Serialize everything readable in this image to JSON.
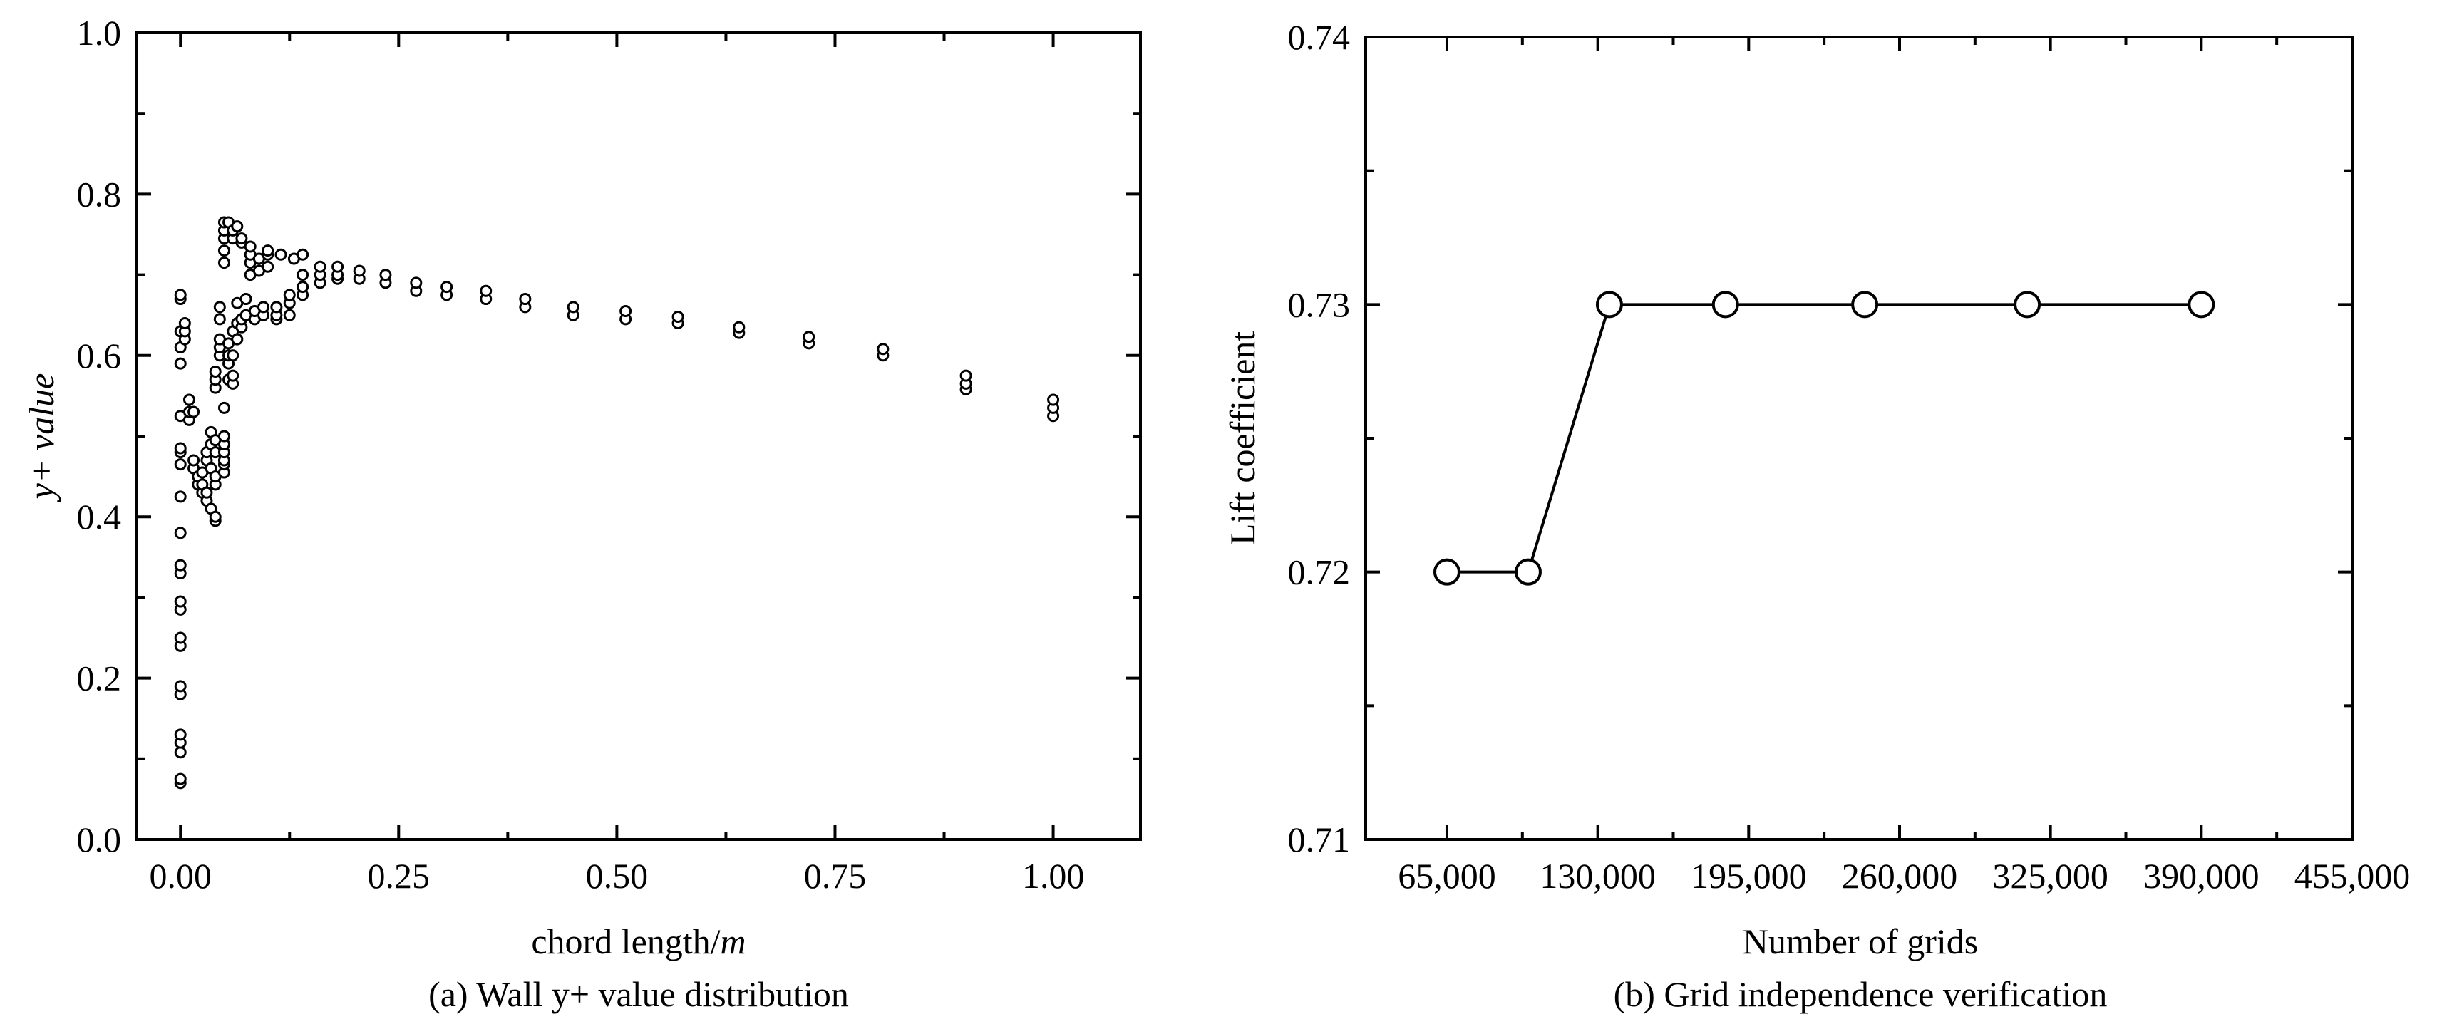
{
  "chart_data": [
    {
      "type": "scatter",
      "title": "",
      "caption": "(a) Wall y+ value distribution",
      "xlabel_prefix": "chord length/",
      "xlabel_unit": "m",
      "ylabel_prefix": "y+ ",
      "ylabel_italic": "value",
      "xlim": [
        -0.05,
        1.1
      ],
      "ylim": [
        0.0,
        1.0
      ],
      "xticks": [
        0.0,
        0.25,
        0.5,
        0.75,
        1.0
      ],
      "xtick_labels": [
        "0.00",
        "0.25",
        "0.50",
        "0.75",
        "1.00"
      ],
      "yticks": [
        0.0,
        0.2,
        0.4,
        0.6,
        0.8,
        1.0
      ],
      "ytick_labels": [
        "0.0",
        "0.2",
        "0.4",
        "0.6",
        "0.8",
        "1.0"
      ],
      "grid": false,
      "marker": "open-circle",
      "points": [
        [
          0.0,
          0.07
        ],
        [
          0.0,
          0.075
        ],
        [
          0.0,
          0.108
        ],
        [
          0.0,
          0.12
        ],
        [
          0.0,
          0.13
        ],
        [
          0.0,
          0.18
        ],
        [
          0.0,
          0.19
        ],
        [
          0.0,
          0.24
        ],
        [
          0.0,
          0.25
        ],
        [
          0.0,
          0.285
        ],
        [
          0.0,
          0.295
        ],
        [
          0.0,
          0.33
        ],
        [
          0.0,
          0.34
        ],
        [
          0.0,
          0.38
        ],
        [
          0.0,
          0.425
        ],
        [
          0.0,
          0.465
        ],
        [
          0.0,
          0.48
        ],
        [
          0.0,
          0.485
        ],
        [
          0.0,
          0.525
        ],
        [
          0.0,
          0.59
        ],
        [
          0.0,
          0.61
        ],
        [
          0.0,
          0.63
        ],
        [
          0.0,
          0.67
        ],
        [
          0.0,
          0.675
        ],
        [
          0.005,
          0.62
        ],
        [
          0.005,
          0.63
        ],
        [
          0.005,
          0.64
        ],
        [
          0.01,
          0.52
        ],
        [
          0.01,
          0.53
        ],
        [
          0.01,
          0.545
        ],
        [
          0.015,
          0.53
        ],
        [
          0.015,
          0.46
        ],
        [
          0.015,
          0.47
        ],
        [
          0.02,
          0.44
        ],
        [
          0.02,
          0.45
        ],
        [
          0.025,
          0.43
        ],
        [
          0.025,
          0.44
        ],
        [
          0.025,
          0.455
        ],
        [
          0.03,
          0.42
        ],
        [
          0.03,
          0.43
        ],
        [
          0.03,
          0.47
        ],
        [
          0.03,
          0.48
        ],
        [
          0.035,
          0.41
        ],
        [
          0.035,
          0.46
        ],
        [
          0.035,
          0.49
        ],
        [
          0.035,
          0.505
        ],
        [
          0.04,
          0.395
        ],
        [
          0.04,
          0.4
        ],
        [
          0.04,
          0.44
        ],
        [
          0.04,
          0.45
        ],
        [
          0.04,
          0.48
        ],
        [
          0.04,
          0.495
        ],
        [
          0.04,
          0.56
        ],
        [
          0.04,
          0.57
        ],
        [
          0.04,
          0.58
        ],
        [
          0.045,
          0.6
        ],
        [
          0.045,
          0.61
        ],
        [
          0.045,
          0.62
        ],
        [
          0.045,
          0.645
        ],
        [
          0.045,
          0.66
        ],
        [
          0.05,
          0.455
        ],
        [
          0.05,
          0.465
        ],
        [
          0.05,
          0.47
        ],
        [
          0.05,
          0.48
        ],
        [
          0.05,
          0.49
        ],
        [
          0.05,
          0.5
        ],
        [
          0.05,
          0.535
        ],
        [
          0.05,
          0.715
        ],
        [
          0.05,
          0.73
        ],
        [
          0.05,
          0.745
        ],
        [
          0.05,
          0.755
        ],
        [
          0.05,
          0.765
        ],
        [
          0.055,
          0.765
        ],
        [
          0.055,
          0.57
        ],
        [
          0.055,
          0.59
        ],
        [
          0.055,
          0.6
        ],
        [
          0.055,
          0.615
        ],
        [
          0.06,
          0.565
        ],
        [
          0.06,
          0.575
        ],
        [
          0.06,
          0.6
        ],
        [
          0.06,
          0.63
        ],
        [
          0.06,
          0.745
        ],
        [
          0.06,
          0.755
        ],
        [
          0.065,
          0.76
        ],
        [
          0.065,
          0.62
        ],
        [
          0.065,
          0.64
        ],
        [
          0.065,
          0.665
        ],
        [
          0.07,
          0.74
        ],
        [
          0.07,
          0.745
        ],
        [
          0.07,
          0.635
        ],
        [
          0.07,
          0.645
        ],
        [
          0.075,
          0.65
        ],
        [
          0.075,
          0.67
        ],
        [
          0.08,
          0.7
        ],
        [
          0.08,
          0.715
        ],
        [
          0.08,
          0.725
        ],
        [
          0.08,
          0.735
        ],
        [
          0.085,
          0.645
        ],
        [
          0.085,
          0.655
        ],
        [
          0.09,
          0.705
        ],
        [
          0.09,
          0.72
        ],
        [
          0.095,
          0.65
        ],
        [
          0.095,
          0.66
        ],
        [
          0.1,
          0.71
        ],
        [
          0.1,
          0.725
        ],
        [
          0.1,
          0.73
        ],
        [
          0.11,
          0.645
        ],
        [
          0.11,
          0.65
        ],
        [
          0.11,
          0.66
        ],
        [
          0.115,
          0.725
        ],
        [
          0.125,
          0.65
        ],
        [
          0.125,
          0.665
        ],
        [
          0.125,
          0.675
        ],
        [
          0.13,
          0.72
        ],
        [
          0.14,
          0.675
        ],
        [
          0.14,
          0.685
        ],
        [
          0.14,
          0.7
        ],
        [
          0.14,
          0.725
        ],
        [
          0.16,
          0.69
        ],
        [
          0.16,
          0.7
        ],
        [
          0.16,
          0.71
        ],
        [
          0.18,
          0.695
        ],
        [
          0.18,
          0.7
        ],
        [
          0.18,
          0.71
        ],
        [
          0.205,
          0.695
        ],
        [
          0.205,
          0.705
        ],
        [
          0.235,
          0.69
        ],
        [
          0.235,
          0.7
        ],
        [
          0.27,
          0.68
        ],
        [
          0.27,
          0.69
        ],
        [
          0.305,
          0.675
        ],
        [
          0.305,
          0.685
        ],
        [
          0.35,
          0.67
        ],
        [
          0.35,
          0.68
        ],
        [
          0.395,
          0.66
        ],
        [
          0.395,
          0.67
        ],
        [
          0.45,
          0.65
        ],
        [
          0.45,
          0.66
        ],
        [
          0.51,
          0.645
        ],
        [
          0.51,
          0.655
        ],
        [
          0.57,
          0.64
        ],
        [
          0.57,
          0.648
        ],
        [
          0.64,
          0.628
        ],
        [
          0.64,
          0.635
        ],
        [
          0.72,
          0.615
        ],
        [
          0.72,
          0.623
        ],
        [
          0.805,
          0.6
        ],
        [
          0.805,
          0.608
        ],
        [
          0.9,
          0.558
        ],
        [
          0.9,
          0.565
        ],
        [
          0.9,
          0.575
        ],
        [
          1.0,
          0.525
        ],
        [
          1.0,
          0.535
        ],
        [
          1.0,
          0.545
        ]
      ]
    },
    {
      "type": "line",
      "title": "",
      "caption": "(b) Grid independence verification",
      "xlabel": "Number of grids",
      "ylabel": "Lift coefficient",
      "xlim": [
        30000,
        455000
      ],
      "ylim": [
        0.71,
        0.74
      ],
      "xticks": [
        65000,
        130000,
        195000,
        260000,
        325000,
        390000,
        455000
      ],
      "xtick_labels": [
        "65,000",
        "130,000",
        "195,000",
        "260,000",
        "325,000",
        "390,000",
        "455,000"
      ],
      "yticks": [
        0.71,
        0.72,
        0.73,
        0.74
      ],
      "ytick_labels": [
        "0.71",
        "0.72",
        "0.73",
        "0.74"
      ],
      "grid": false,
      "marker": "open-circle",
      "x": [
        65000,
        100000,
        135000,
        185000,
        245000,
        315000,
        390000
      ],
      "y": [
        0.72,
        0.72,
        0.73,
        0.73,
        0.73,
        0.73,
        0.73
      ]
    }
  ]
}
